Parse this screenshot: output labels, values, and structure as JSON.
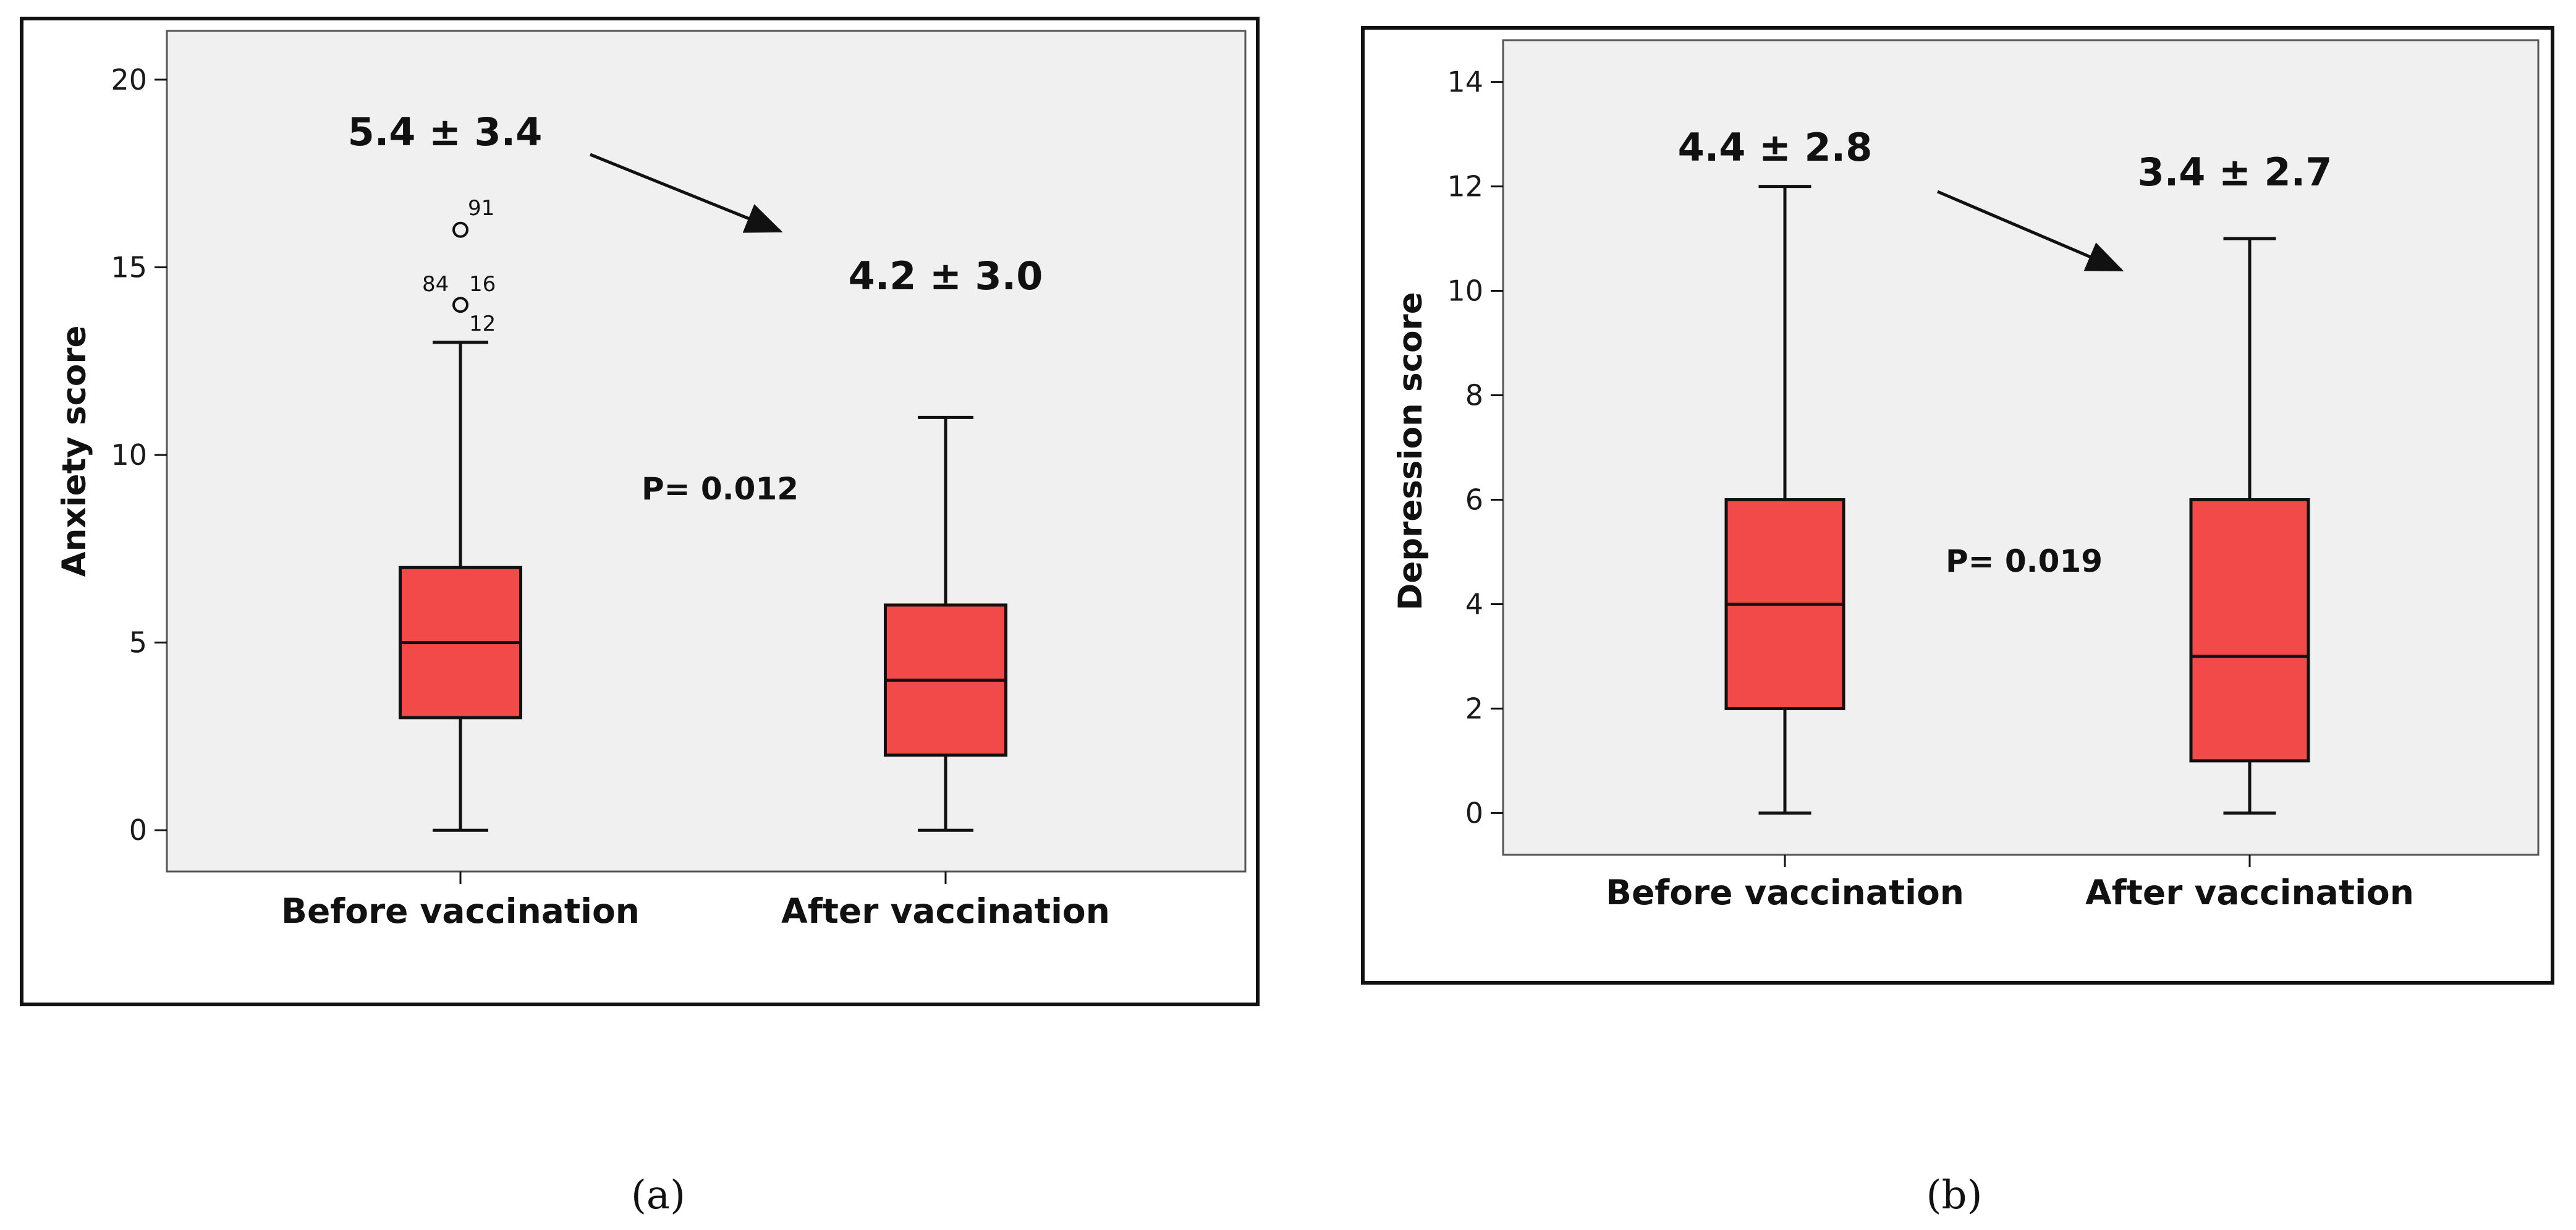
{
  "chart_data": [
    {
      "type": "box",
      "panel_label": "a",
      "ylabel": "Anxiety score",
      "ylim": [
        -1.1,
        21.3
      ],
      "yticks": [
        0,
        5,
        10,
        15,
        20
      ],
      "categories": [
        "Before vaccination",
        "After vaccination"
      ],
      "boxes": [
        {
          "name": "Before vaccination",
          "min": 0,
          "q1": 3,
          "median": 5,
          "q3": 7,
          "max": 13,
          "outliers": [
            {
              "value": 16,
              "labels": [
                "91"
              ]
            },
            {
              "value": 14,
              "labels": [
                "84",
                "16",
                "12"
              ]
            }
          ]
        },
        {
          "name": "After vaccination",
          "min": 0,
          "q1": 2,
          "median": 4,
          "q3": 6,
          "max": 11,
          "outliers": []
        }
      ],
      "annotations": {
        "before_stat": "5.4 ± 3.4",
        "after_stat": "4.2 ± 3.0",
        "p_value": "P= 0.012"
      }
    },
    {
      "type": "box",
      "panel_label": "b",
      "ylabel": "Depression score",
      "ylim": [
        -0.8,
        14.8
      ],
      "yticks": [
        0,
        2,
        4,
        6,
        8,
        10,
        12,
        14
      ],
      "categories": [
        "Before vaccination",
        "After vaccination"
      ],
      "boxes": [
        {
          "name": "Before vaccination",
          "min": 0,
          "q1": 2,
          "median": 4,
          "q3": 6,
          "max": 12,
          "outliers": []
        },
        {
          "name": "After vaccination",
          "min": 0,
          "q1": 1,
          "median": 3,
          "q3": 6,
          "max": 11,
          "outliers": []
        }
      ],
      "annotations": {
        "before_stat": "4.4 ± 2.8",
        "after_stat": "3.4 ± 2.7",
        "p_value": "P= 0.019"
      }
    }
  ],
  "colors": {
    "box_fill": "#f24a48",
    "plot_bg": "#f0f0f0",
    "frame": "#111111"
  },
  "panel_labels": {
    "a": "(a)",
    "b": "(b)"
  }
}
